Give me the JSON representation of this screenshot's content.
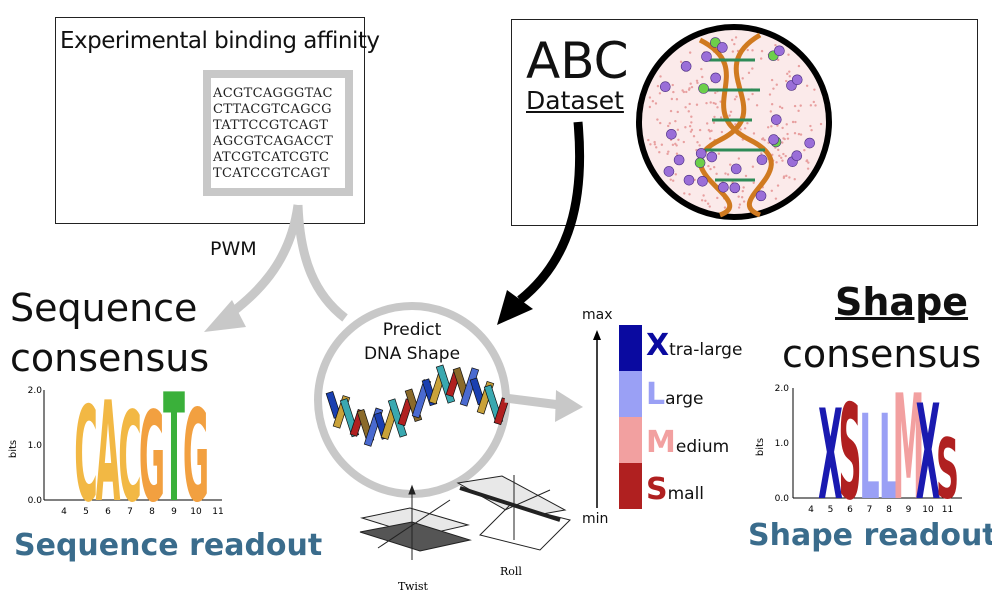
{
  "binding_box": {
    "title": "Experimental binding affinity",
    "sequences": [
      "ACGTCAGGGTAC",
      "CTTACGTCAGCG",
      "TATTCCGTCAGT",
      "AGCGTCAGACCT",
      "ATCGTCATCGTC",
      "TCATCCGTCAGT"
    ]
  },
  "abc_box": {
    "title": "ABC",
    "subtitle": "Dataset"
  },
  "pwm_label": "PWM",
  "sequence_consensus": {
    "line1": "Sequence",
    "line2": "consensus",
    "readout": "Sequence readout"
  },
  "shape_consensus": {
    "line1": "Shape",
    "line2": "consensus",
    "readout": "Shape readout"
  },
  "predict_circle": {
    "line1": "Predict",
    "line2": "DNA Shape"
  },
  "scale": {
    "max_label": "max",
    "min_label": "min",
    "items": [
      {
        "letter": "X",
        "rest": "tra-large",
        "color": "#0a0aa0",
        "bar": "#0a0aa0"
      },
      {
        "letter": "L",
        "rest": "arge",
        "color": "#9aa0f5",
        "bar": "#9aa0f5"
      },
      {
        "letter": "M",
        "rest": "edium",
        "color": "#f2a0a0",
        "bar": "#f2a0a0"
      },
      {
        "letter": "S",
        "rest": "mall",
        "color": "#b02020",
        "bar": "#b02020"
      }
    ]
  },
  "geometry_labels": {
    "twist": "Twist",
    "roll": "Roll"
  },
  "seq_logo": {
    "ylabel": "bits",
    "yticks": [
      "2.0",
      "1.0",
      "0.0"
    ],
    "xticks": [
      "4",
      "5",
      "6",
      "7",
      "8",
      "9",
      "10",
      "11"
    ],
    "letters": [
      "C",
      "A",
      "C",
      "G",
      "T",
      "G"
    ]
  },
  "shape_logo": {
    "ylabel": "bits",
    "yticks": [
      "2.0",
      "1.0",
      "0.0"
    ],
    "xticks": [
      "4",
      "5",
      "6",
      "7",
      "8",
      "9",
      "10",
      "11"
    ],
    "letters": [
      "X",
      "S",
      "L",
      "L",
      "M",
      "X",
      "S"
    ]
  }
}
